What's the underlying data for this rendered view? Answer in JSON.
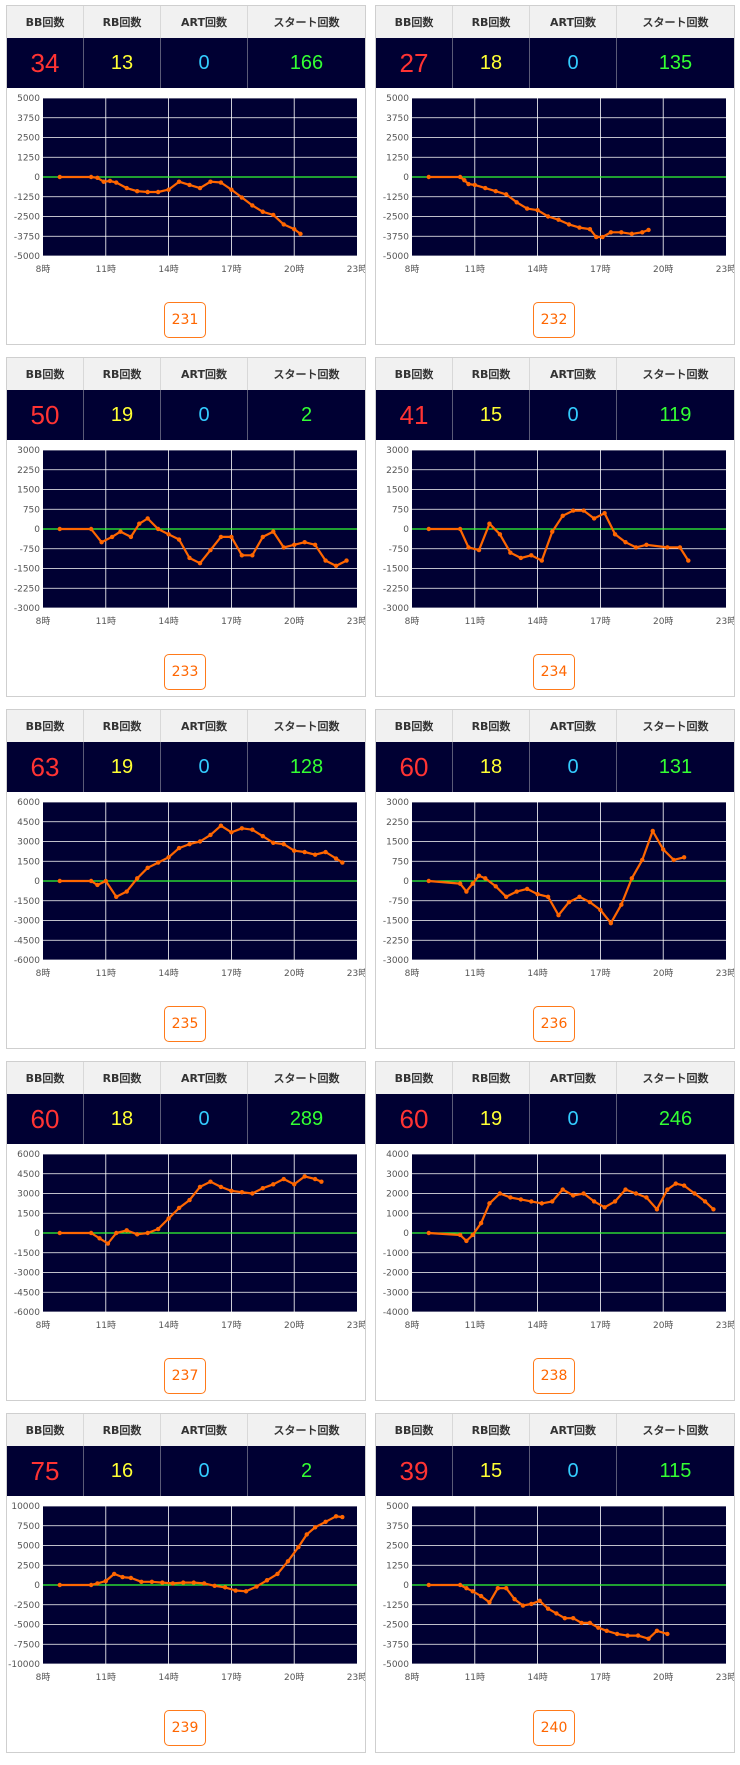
{
  "header_labels": {
    "bb": "BB回数",
    "rb": "RB回数",
    "art": "ART回数",
    "start": "スタート回数"
  },
  "colors": {
    "plot_bg": "#000033",
    "grid": "#ffffff",
    "zero_line": "#33ff33",
    "series": "#ff6600"
  },
  "chart_data": [
    {
      "type": "line",
      "machine": "231",
      "stats": {
        "bb": "34",
        "rb": "13",
        "art": "0",
        "start": "166"
      },
      "x_ticks": [
        "8時",
        "11時",
        "14時",
        "17時",
        "20時",
        "23時"
      ],
      "xlim": [
        8,
        23
      ],
      "y_ticks": [
        5000,
        3750,
        2500,
        1250,
        0,
        -1250,
        -2500,
        -3750,
        -5000
      ],
      "ylim": [
        -5000,
        5000
      ],
      "x": [
        8.8,
        10.3,
        10.6,
        10.9,
        11.2,
        11.5,
        12,
        12.5,
        13,
        13.5,
        14,
        14.5,
        15,
        15.5,
        16,
        16.5,
        17,
        17.5,
        18,
        18.5,
        19,
        19.5,
        20,
        20.3
      ],
      "y": [
        0,
        0,
        -50,
        -300,
        -250,
        -350,
        -700,
        -900,
        -950,
        -950,
        -800,
        -300,
        -500,
        -700,
        -300,
        -350,
        -800,
        -1300,
        -1800,
        -2200,
        -2400,
        -3000,
        -3300,
        -3600
      ]
    },
    {
      "type": "line",
      "machine": "232",
      "stats": {
        "bb": "27",
        "rb": "18",
        "art": "0",
        "start": "135"
      },
      "x_ticks": [
        "8時",
        "11時",
        "14時",
        "17時",
        "20時",
        "23時"
      ],
      "xlim": [
        8,
        23
      ],
      "y_ticks": [
        5000,
        3750,
        2500,
        1250,
        0,
        -1250,
        -2500,
        -3750,
        -5000
      ],
      "ylim": [
        -5000,
        5000
      ],
      "x": [
        8.8,
        10.3,
        10.5,
        10.7,
        11,
        11.5,
        12,
        12.5,
        13,
        13.5,
        14,
        14.5,
        15,
        15.5,
        16,
        16.5,
        16.8,
        17.1,
        17.5,
        18,
        18.5,
        19,
        19.3
      ],
      "y": [
        0,
        0,
        -200,
        -450,
        -500,
        -700,
        -900,
        -1100,
        -1600,
        -2000,
        -2100,
        -2500,
        -2700,
        -3000,
        -3200,
        -3300,
        -3800,
        -3800,
        -3500,
        -3500,
        -3600,
        -3500,
        -3350
      ]
    },
    {
      "type": "line",
      "machine": "233",
      "stats": {
        "bb": "50",
        "rb": "19",
        "art": "0",
        "start": "2"
      },
      "x_ticks": [
        "8時",
        "11時",
        "14時",
        "17時",
        "20時",
        "23時"
      ],
      "xlim": [
        8,
        23
      ],
      "y_ticks": [
        3000,
        2250,
        1500,
        750,
        0,
        -750,
        -1500,
        -2250,
        -3000
      ],
      "ylim": [
        -3000,
        3000
      ],
      "x": [
        8.8,
        10.3,
        10.8,
        11.3,
        11.7,
        12.2,
        12.6,
        13,
        13.5,
        14,
        14.5,
        15,
        15.5,
        16,
        16.5,
        17,
        17.5,
        18,
        18.5,
        19,
        19.5,
        20,
        20.5,
        21,
        21.5,
        22,
        22.5
      ],
      "y": [
        0,
        0,
        -500,
        -300,
        -100,
        -300,
        200,
        400,
        0,
        -200,
        -400,
        -1100,
        -1300,
        -800,
        -300,
        -300,
        -1000,
        -1000,
        -300,
        -100,
        -700,
        -600,
        -500,
        -600,
        -1200,
        -1400,
        -1200
      ]
    },
    {
      "type": "line",
      "machine": "234",
      "stats": {
        "bb": "41",
        "rb": "15",
        "art": "0",
        "start": "119"
      },
      "x_ticks": [
        "8時",
        "11時",
        "14時",
        "17時",
        "20時",
        "23時"
      ],
      "xlim": [
        8,
        23
      ],
      "y_ticks": [
        3000,
        2250,
        1500,
        750,
        0,
        -750,
        -1500,
        -2250,
        -3000
      ],
      "ylim": [
        -3000,
        3000
      ],
      "x": [
        8.8,
        10.3,
        10.7,
        11.2,
        11.7,
        12.2,
        12.7,
        13.2,
        13.7,
        14.2,
        14.7,
        15.2,
        15.7,
        16.2,
        16.7,
        17.2,
        17.7,
        18.2,
        18.7,
        19.2,
        20.2,
        20.8,
        21.2
      ],
      "y": [
        0,
        0,
        -700,
        -800,
        200,
        -200,
        -900,
        -1100,
        -1000,
        -1200,
        -100,
        500,
        700,
        700,
        400,
        600,
        -200,
        -500,
        -700,
        -600,
        -700,
        -700,
        -1200
      ]
    },
    {
      "type": "line",
      "machine": "235",
      "stats": {
        "bb": "63",
        "rb": "19",
        "art": "0",
        "start": "128"
      },
      "x_ticks": [
        "8時",
        "11時",
        "14時",
        "17時",
        "20時",
        "23時"
      ],
      "xlim": [
        8,
        23
      ],
      "y_ticks": [
        6000,
        4500,
        3000,
        1500,
        0,
        -1500,
        -3000,
        -4500,
        -6000
      ],
      "ylim": [
        -6000,
        6000
      ],
      "x": [
        8.8,
        10.3,
        10.6,
        11,
        11.5,
        12,
        12.5,
        13,
        13.5,
        14,
        14.5,
        15,
        15.5,
        16,
        16.5,
        17,
        17.5,
        18,
        18.5,
        19,
        19.5,
        20,
        20.5,
        21,
        21.5,
        22,
        22.3
      ],
      "y": [
        0,
        0,
        -300,
        0,
        -1200,
        -800,
        200,
        1000,
        1400,
        1800,
        2500,
        2800,
        3000,
        3500,
        4200,
        3700,
        4000,
        3900,
        3400,
        2900,
        2800,
        2300,
        2200,
        2000,
        2200,
        1700,
        1400
      ]
    },
    {
      "type": "line",
      "machine": "236",
      "stats": {
        "bb": "60",
        "rb": "18",
        "art": "0",
        "start": "131"
      },
      "x_ticks": [
        "8時",
        "11時",
        "14時",
        "17時",
        "20時",
        "23時"
      ],
      "xlim": [
        8,
        23
      ],
      "y_ticks": [
        3000,
        2250,
        1500,
        750,
        0,
        -750,
        -1500,
        -2250,
        -3000
      ],
      "ylim": [
        -3000,
        3000
      ],
      "x": [
        8.8,
        10.3,
        10.6,
        10.9,
        11.2,
        11.5,
        12,
        12.5,
        13,
        13.5,
        14,
        14.5,
        15,
        15.5,
        16,
        16.5,
        17,
        17.5,
        18,
        18.5,
        19,
        19.5,
        20,
        20.5,
        21
      ],
      "y": [
        0,
        -100,
        -400,
        -100,
        200,
        100,
        -200,
        -600,
        -400,
        -300,
        -500,
        -600,
        -1300,
        -800,
        -600,
        -800,
        -1100,
        -1600,
        -900,
        100,
        800,
        1900,
        1200,
        800,
        900
      ]
    },
    {
      "type": "line",
      "machine": "237",
      "stats": {
        "bb": "60",
        "rb": "18",
        "art": "0",
        "start": "289"
      },
      "x_ticks": [
        "8時",
        "11時",
        "14時",
        "17時",
        "20時",
        "23時"
      ],
      "xlim": [
        8,
        23
      ],
      "y_ticks": [
        6000,
        4500,
        3000,
        1500,
        0,
        -1500,
        -3000,
        -4500,
        -6000
      ],
      "ylim": [
        -6000,
        6000
      ],
      "x": [
        8.8,
        10.3,
        10.7,
        11.1,
        11.5,
        12,
        12.5,
        13,
        13.5,
        14,
        14.5,
        15,
        15.5,
        16,
        16.5,
        17,
        17.5,
        18,
        18.5,
        19,
        19.5,
        20,
        20.5,
        21,
        21.3
      ],
      "y": [
        0,
        0,
        -400,
        -800,
        0,
        200,
        -100,
        0,
        300,
        1100,
        1900,
        2500,
        3500,
        3900,
        3500,
        3200,
        3100,
        3000,
        3400,
        3700,
        4100,
        3700,
        4300,
        4100,
        3900
      ]
    },
    {
      "type": "line",
      "machine": "238",
      "stats": {
        "bb": "60",
        "rb": "19",
        "art": "0",
        "start": "246"
      },
      "x_ticks": [
        "8時",
        "11時",
        "14時",
        "17時",
        "20時",
        "23時"
      ],
      "xlim": [
        8,
        23
      ],
      "y_ticks": [
        4000,
        3000,
        2000,
        1000,
        0,
        -1000,
        -2000,
        -3000,
        -4000
      ],
      "ylim": [
        -4000,
        4000
      ],
      "x": [
        8.8,
        10.3,
        10.6,
        10.9,
        11.3,
        11.7,
        12.2,
        12.7,
        13.2,
        13.7,
        14.2,
        14.7,
        15.2,
        15.7,
        16.2,
        16.7,
        17.2,
        17.7,
        18.2,
        18.7,
        19.2,
        19.7,
        20.2,
        20.6,
        21,
        21.5,
        22,
        22.4
      ],
      "y": [
        0,
        -100,
        -400,
        -100,
        500,
        1500,
        2000,
        1800,
        1700,
        1600,
        1500,
        1600,
        2200,
        1900,
        2000,
        1600,
        1300,
        1600,
        2200,
        2000,
        1800,
        1200,
        2200,
        2500,
        2400,
        2000,
        1600,
        1200
      ]
    },
    {
      "type": "line",
      "machine": "239",
      "stats": {
        "bb": "75",
        "rb": "16",
        "art": "0",
        "start": "2"
      },
      "x_ticks": [
        "8時",
        "11時",
        "14時",
        "17時",
        "20時",
        "23時"
      ],
      "xlim": [
        8,
        23
      ],
      "y_ticks": [
        10000,
        7500,
        5000,
        2500,
        0,
        -2500,
        -5000,
        -7500,
        -10000
      ],
      "ylim": [
        -10000,
        10000
      ],
      "x": [
        8.8,
        10.3,
        10.6,
        11,
        11.4,
        11.8,
        12.2,
        12.7,
        13.2,
        13.7,
        14.2,
        14.7,
        15.2,
        15.7,
        16.2,
        16.7,
        17.2,
        17.7,
        18.2,
        18.7,
        19.2,
        19.7,
        20.2,
        20.6,
        21,
        21.5,
        22,
        22.3
      ],
      "y": [
        0,
        0,
        200,
        500,
        1400,
        1000,
        900,
        400,
        400,
        300,
        200,
        300,
        300,
        200,
        -100,
        -300,
        -700,
        -800,
        -200,
        600,
        1400,
        3000,
        4800,
        6400,
        7300,
        8000,
        8700,
        8600
      ]
    },
    {
      "type": "line",
      "machine": "240",
      "stats": {
        "bb": "39",
        "rb": "15",
        "art": "0",
        "start": "115"
      },
      "x_ticks": [
        "8時",
        "11時",
        "14時",
        "17時",
        "20時",
        "23時"
      ],
      "xlim": [
        8,
        23
      ],
      "y_ticks": [
        5000,
        3750,
        2500,
        1250,
        0,
        -1250,
        -2500,
        -3750,
        -5000
      ],
      "ylim": [
        -5000,
        5000
      ],
      "x": [
        8.8,
        10.3,
        10.6,
        10.9,
        11.3,
        11.7,
        12.1,
        12.5,
        12.9,
        13.3,
        13.7,
        14.1,
        14.5,
        14.9,
        15.3,
        15.7,
        16.1,
        16.5,
        16.9,
        17.3,
        17.8,
        18.3,
        18.8,
        19.3,
        19.7,
        20.2
      ],
      "y": [
        0,
        0,
        -200,
        -400,
        -700,
        -1100,
        -200,
        -200,
        -900,
        -1300,
        -1200,
        -1000,
        -1500,
        -1800,
        -2100,
        -2100,
        -2400,
        -2400,
        -2700,
        -2900,
        -3100,
        -3200,
        -3200,
        -3400,
        -2900,
        -3100
      ]
    }
  ]
}
